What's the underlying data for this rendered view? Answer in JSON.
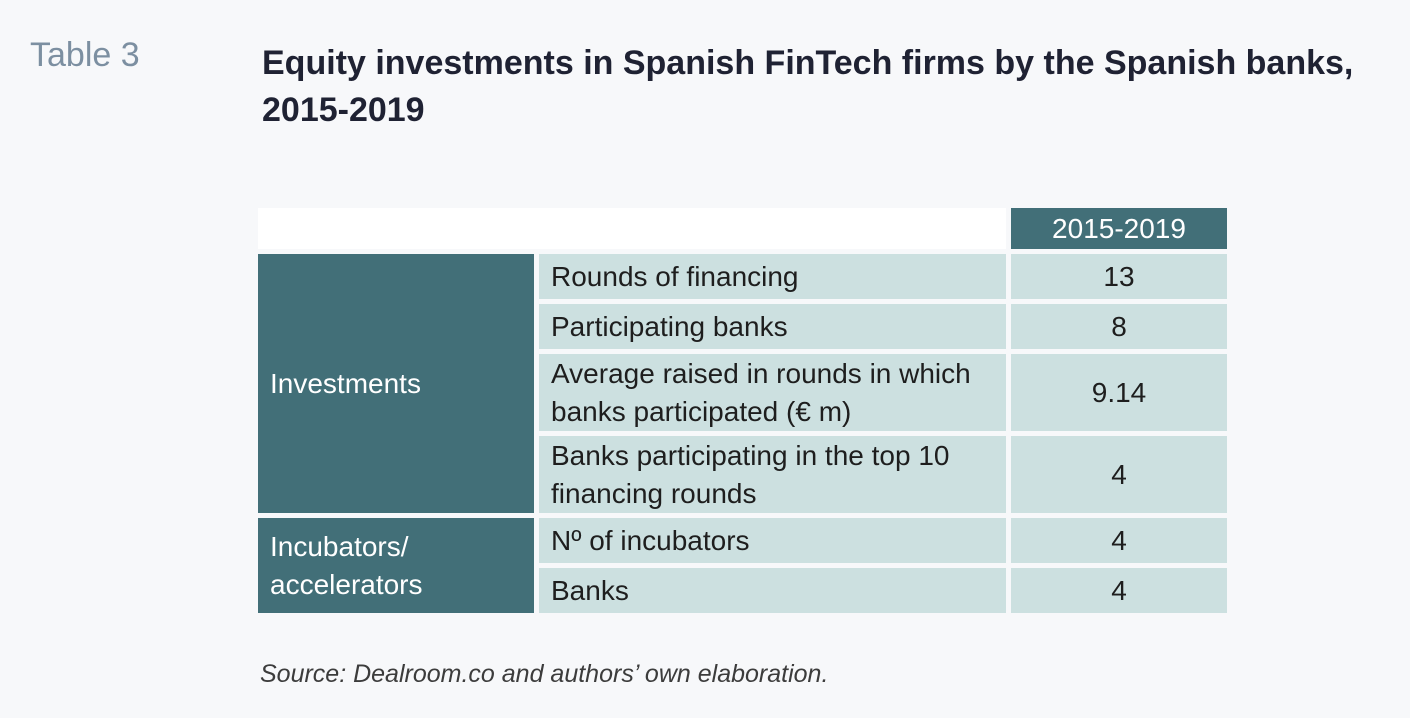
{
  "header": {
    "table_label": "Table 3",
    "title": "Equity investments in Spanish FinTech firms by the Spanish banks, 2015-2019"
  },
  "table": {
    "column_header": "2015-2019",
    "groups": [
      {
        "label": "Investments",
        "rows": [
          {
            "label": "Rounds of financing",
            "value": "13"
          },
          {
            "label": "Participating banks",
            "value": "8"
          },
          {
            "label": "Average raised in rounds in which banks participated (€ m)",
            "value": "9.14"
          },
          {
            "label": "Banks participating in the top 10 financing rounds",
            "value": "4"
          }
        ]
      },
      {
        "label": "Incubators/ accelerators",
        "rows": [
          {
            "label": "Nº of incubators",
            "value": "4"
          },
          {
            "label": "Banks",
            "value": "4"
          }
        ]
      }
    ]
  },
  "footer": {
    "source": "Source: Dealroom.co and authors’ own elaboration."
  },
  "colors": {
    "background": "#f7f8fa",
    "header_teal": "#426f78",
    "cell_light": "#cce0e0",
    "label_grey": "#7c8fa1"
  }
}
